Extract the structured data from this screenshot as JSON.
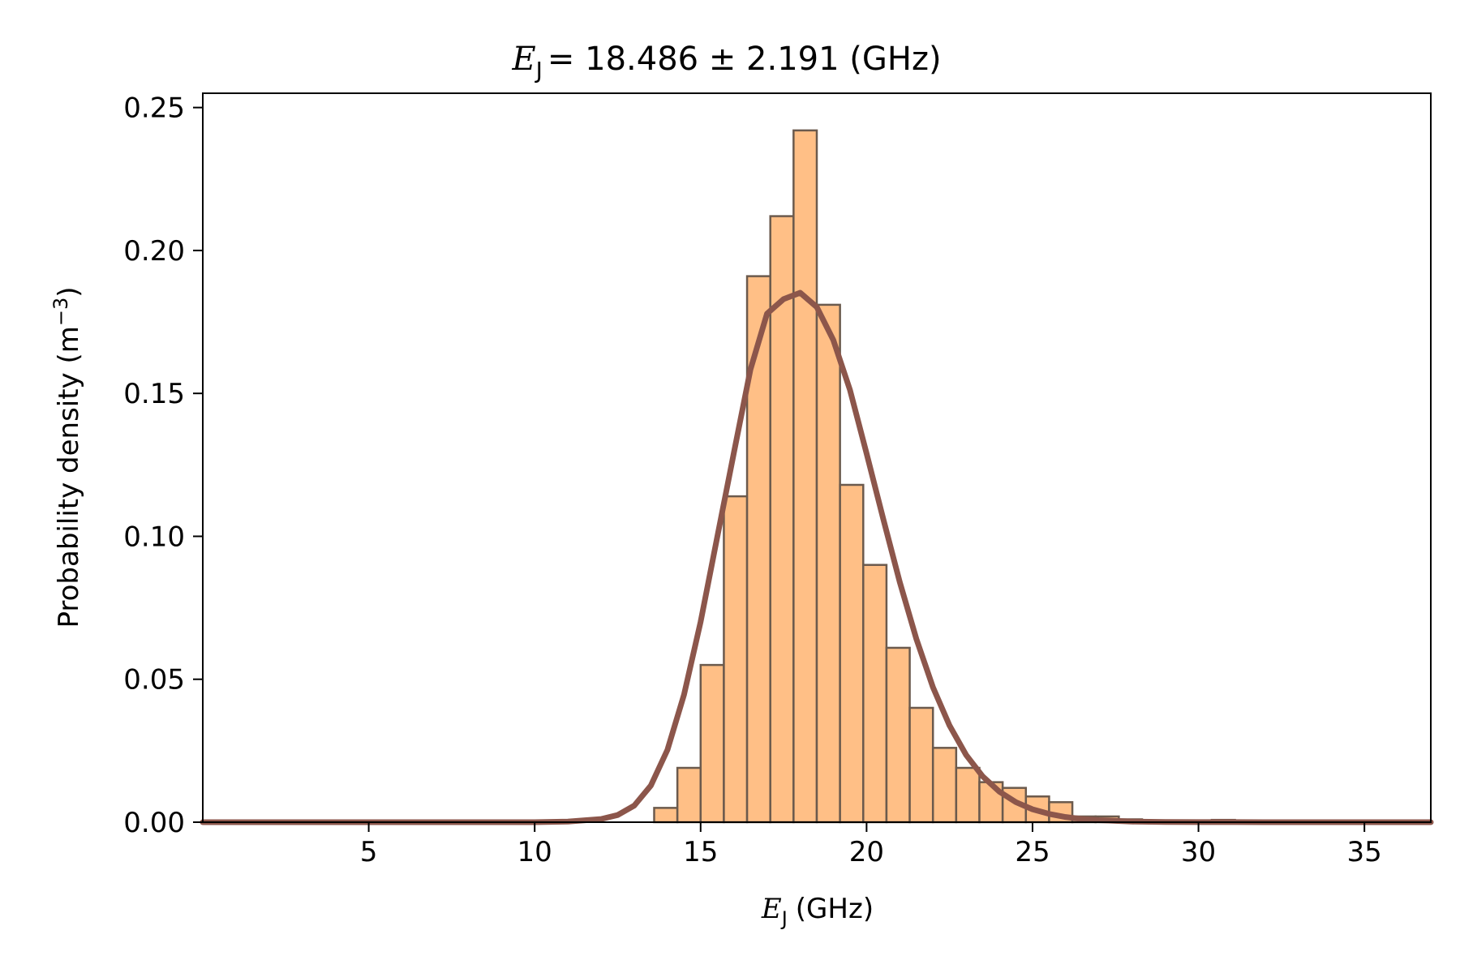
{
  "chart_data": {
    "type": "bar",
    "title": {
      "symbol": "E",
      "subscript": "J",
      "text": "= 18.486 ± 2.191 (GHz)"
    },
    "xlabel": {
      "symbol": "E",
      "subscript": "J",
      "text": "(GHz)"
    },
    "ylabel": {
      "text": "Probability density (m",
      "superscript": "−3",
      "close": ")"
    },
    "xlim": [
      0,
      37
    ],
    "ylim": [
      0,
      0.255
    ],
    "xticks": [
      5,
      10,
      15,
      20,
      25,
      30,
      35
    ],
    "xtick_labels": [
      "5",
      "10",
      "15",
      "20",
      "25",
      "30",
      "35"
    ],
    "yticks": [
      0,
      0.05,
      0.1,
      0.15,
      0.2,
      0.25
    ],
    "ytick_labels": [
      "0.00",
      "0.05",
      "0.10",
      "0.15",
      "0.20",
      "0.25"
    ],
    "grid": false,
    "legend": "none",
    "histogram": {
      "bin_width": 0.7,
      "bins": [
        {
          "x0": 13.6,
          "value": 0.005
        },
        {
          "x0": 14.3,
          "value": 0.019
        },
        {
          "x0": 15.0,
          "value": 0.055
        },
        {
          "x0": 15.7,
          "value": 0.114
        },
        {
          "x0": 16.4,
          "value": 0.191
        },
        {
          "x0": 17.1,
          "value": 0.212
        },
        {
          "x0": 17.8,
          "value": 0.242
        },
        {
          "x0": 18.5,
          "value": 0.181
        },
        {
          "x0": 19.2,
          "value": 0.118
        },
        {
          "x0": 19.9,
          "value": 0.09
        },
        {
          "x0": 20.6,
          "value": 0.061
        },
        {
          "x0": 21.3,
          "value": 0.04
        },
        {
          "x0": 22.0,
          "value": 0.026
        },
        {
          "x0": 22.7,
          "value": 0.019
        },
        {
          "x0": 23.4,
          "value": 0.014
        },
        {
          "x0": 24.1,
          "value": 0.012
        },
        {
          "x0": 24.8,
          "value": 0.009
        },
        {
          "x0": 25.5,
          "value": 0.007
        },
        {
          "x0": 26.2,
          "value": 0.002
        },
        {
          "x0": 26.9,
          "value": 0.002
        },
        {
          "x0": 27.6,
          "value": 0.001
        },
        {
          "x0": 30.4,
          "value": 0.0008
        }
      ]
    },
    "fit_curve": {
      "type": "line",
      "x": [
        0,
        5,
        10,
        11,
        12,
        12.5,
        13,
        13.5,
        14,
        14.5,
        15,
        15.5,
        16,
        16.5,
        17,
        17.5,
        18,
        18.5,
        19,
        19.5,
        20,
        20.5,
        21,
        21.5,
        22,
        22.5,
        23,
        23.5,
        24,
        24.5,
        25,
        25.5,
        26,
        26.5,
        27,
        28,
        29,
        30,
        32,
        34,
        37
      ],
      "y": [
        0,
        0,
        0,
        0.0002,
        0.0011,
        0.0025,
        0.0058,
        0.0128,
        0.0253,
        0.0446,
        0.0701,
        0.0997,
        0.1291,
        0.1583,
        0.1779,
        0.183,
        0.1852,
        0.1802,
        0.1686,
        0.1512,
        0.129,
        0.1062,
        0.084,
        0.0641,
        0.0472,
        0.0338,
        0.0235,
        0.016,
        0.0107,
        0.007,
        0.0045,
        0.0029,
        0.0018,
        0.0011,
        0.0007,
        0.0002,
        8e-05,
        3e-05,
        1e-05,
        0,
        0
      ]
    },
    "colors": {
      "bar_fill": "#ffbf86",
      "bar_edge": "#6b5a4d",
      "curve": "#8c564b",
      "axes": "#000000"
    }
  }
}
